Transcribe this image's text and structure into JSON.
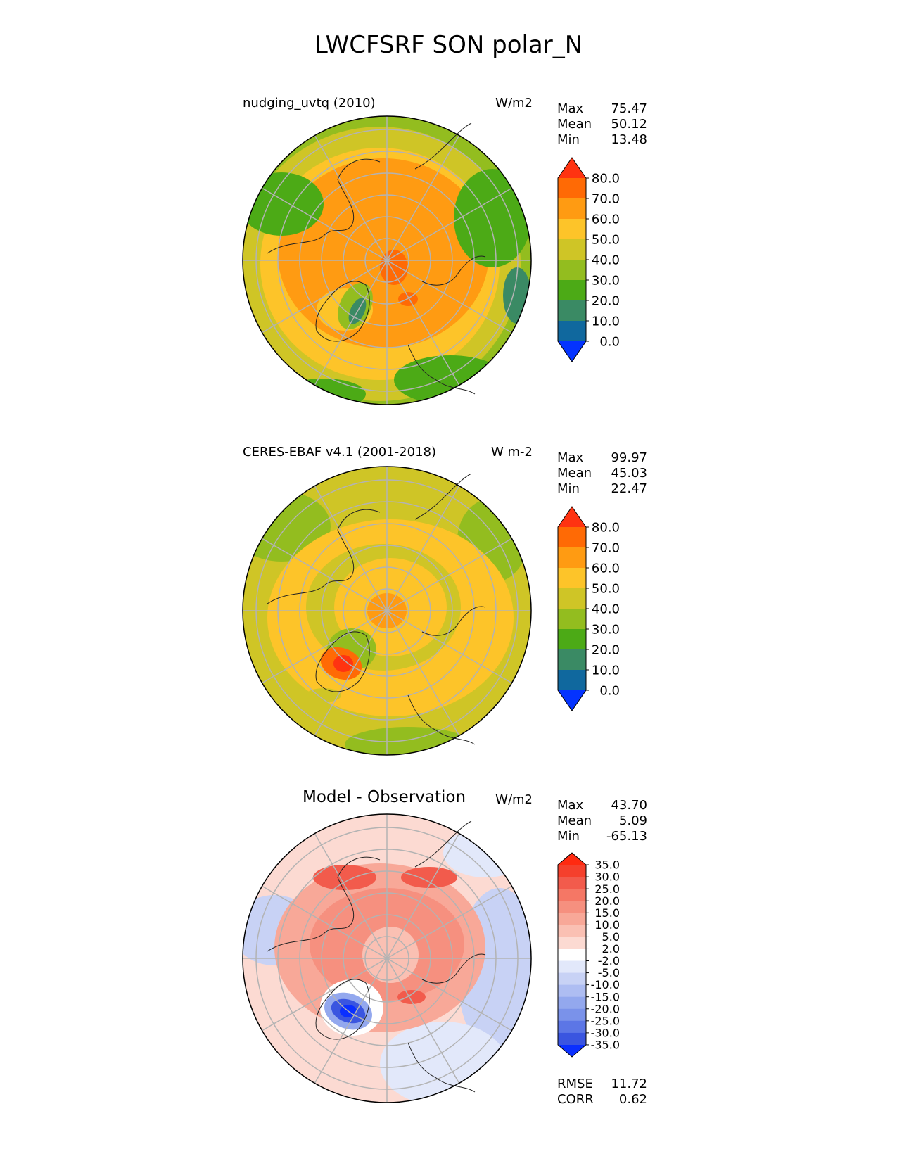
{
  "figure": {
    "title": "LWCFSRF SON polar_N"
  },
  "panels": [
    {
      "title": "nudging_uvtq (2010)",
      "units": "W/m2",
      "stats": [
        {
          "label": "Max",
          "value": "75.47"
        },
        {
          "label": "Mean",
          "value": "50.12"
        },
        {
          "label": "Min",
          "value": "13.48"
        }
      ]
    },
    {
      "title": "CERES-EBAF v4.1 (2001-2018)",
      "units": "W m-2",
      "stats": [
        {
          "label": "Max",
          "value": "99.97"
        },
        {
          "label": "Mean",
          "value": "45.03"
        },
        {
          "label": "Min",
          "value": "22.47"
        }
      ]
    },
    {
      "title": "Model - Observation",
      "units": "W/m2",
      "stats": [
        {
          "label": "Max",
          "value": "43.70"
        },
        {
          "label": "Mean",
          "value": "5.09"
        },
        {
          "label": "Min",
          "value": "-65.13"
        }
      ],
      "extra_stats": [
        {
          "label": "RMSE",
          "value": "11.72"
        },
        {
          "label": "CORR",
          "value": "0.62"
        }
      ]
    }
  ],
  "colorbars": {
    "sequential": {
      "ticks": [
        "80.0",
        "70.0",
        "60.0",
        "50.0",
        "40.0",
        "30.0",
        "20.0",
        "10.0",
        "0.0"
      ],
      "colors": [
        "#ff3311",
        "#ff6a05",
        "#ff9b12",
        "#fdc429",
        "#cfc526",
        "#93bd1f",
        "#4caa16",
        "#3a8a64",
        "#10689e",
        "#0433ff"
      ]
    },
    "difference": {
      "ticks": [
        "35.0",
        "30.0",
        "25.0",
        "20.0",
        "15.0",
        "10.0",
        "5.0",
        "2.0",
        "-2.0",
        "-5.0",
        "-10.0",
        "-15.0",
        "-20.0",
        "-25.0",
        "-30.0",
        "-35.0"
      ],
      "colors": [
        "#ff2a10",
        "#f5402c",
        "#f25b4c",
        "#f57765",
        "#f6907f",
        "#f8a898",
        "#fac0b3",
        "#fcdad2",
        "#ffffff",
        "#e2e8fa",
        "#c8d2f5",
        "#aebdf2",
        "#93a8ee",
        "#7a92ea",
        "#5c76e6",
        "#3a55e0",
        "#0a2fff"
      ]
    }
  },
  "chart_data": [
    {
      "type": "heatmap",
      "projection": "north-polar-stereographic",
      "title": "nudging_uvtq (2010)",
      "units": "W/m2",
      "region": "polar_N",
      "season": "SON",
      "max": 75.47,
      "mean": 50.12,
      "min": 13.48,
      "levels": [
        0,
        10,
        20,
        30,
        40,
        50,
        60,
        70,
        80
      ]
    },
    {
      "type": "heatmap",
      "projection": "north-polar-stereographic",
      "title": "CERES-EBAF v4.1 (2001-2018)",
      "units": "W m-2",
      "region": "polar_N",
      "season": "SON",
      "max": 99.97,
      "mean": 45.03,
      "min": 22.47,
      "levels": [
        0,
        10,
        20,
        30,
        40,
        50,
        60,
        70,
        80
      ]
    },
    {
      "type": "heatmap",
      "projection": "north-polar-stereographic",
      "title": "Model - Observation",
      "units": "W/m2",
      "region": "polar_N",
      "season": "SON",
      "max": 43.7,
      "mean": 5.09,
      "min": -65.13,
      "rmse": 11.72,
      "corr": 0.62,
      "levels": [
        -35,
        -30,
        -25,
        -20,
        -15,
        -10,
        -5,
        -2,
        2,
        5,
        10,
        15,
        20,
        25,
        30,
        35
      ]
    }
  ]
}
